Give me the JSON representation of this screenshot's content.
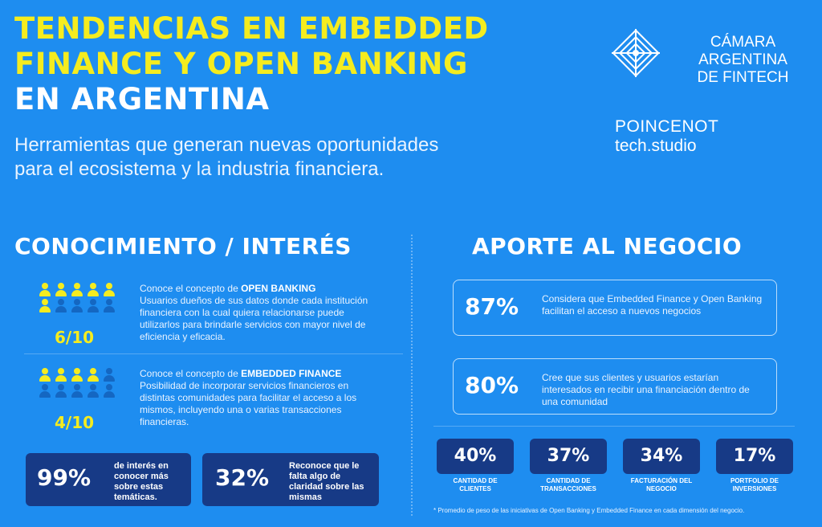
{
  "header": {
    "title_line1": "TENDENCIAS EN EMBEDDED",
    "title_line2": "FINANCE Y OPEN BANKING",
    "title_line3": "EN ARGENTINA",
    "subtitle_line1": "Herramientas que generan nuevas oportunidades",
    "subtitle_line2": "para el ecosistema y la industria financiera."
  },
  "logos": {
    "cafintech_line1": "CÁMARA ARGENTINA",
    "cafintech_line2": "DE FINTECH",
    "poincenot_line1": "POINCENOT",
    "poincenot_line2": "tech.studio"
  },
  "left": {
    "section_title": "CONOCIMIENTO / INTERÉS",
    "items": [
      {
        "ratio": "6/10",
        "filled": 6,
        "intro": "Conoce el concepto de ",
        "highlight": "OPEN BANKING",
        "text": "Usuarios dueños de sus datos donde cada institución financiera con la cual quiera relacionarse puede utilizarlos para brindarle servicios con mayor nivel de eficiencia y eficacia."
      },
      {
        "ratio": "4/10",
        "filled": 4,
        "intro": "Conoce el concepto de ",
        "highlight": "EMBEDDED FINANCE",
        "text": "Posibilidad de incorporar servicios financieros en distintas comunidades para facilitar el acceso a los mismos, incluyendo una o varias transacciones financieras."
      }
    ],
    "boxes": [
      {
        "value": "99%",
        "text": "de interés en conocer más sobre estas temáticas."
      },
      {
        "value": "32%",
        "text": "Reconoce que le falta algo de claridad sobre las mismas"
      }
    ]
  },
  "right": {
    "section_title": "APORTE AL NEGOCIO",
    "cards": [
      {
        "value": "87%",
        "text": "Considera que Embedded Finance y Open Banking facilitan el acceso a nuevos negocios"
      },
      {
        "value": "80%",
        "text": "Cree que sus clientes y usuarios estarían interesados en recibir una financiación dentro de una comunidad"
      }
    ],
    "stats": [
      {
        "value": "40%",
        "label": "CANTIDAD DE CLIENTES"
      },
      {
        "value": "37%",
        "label": "CANTIDAD DE TRANSACCIONES"
      },
      {
        "value": "34%",
        "label": "FACTURACIÓN DEL NEGOCIO"
      },
      {
        "value": "17%",
        "label": "PORTFOLIO DE INVERSIONES"
      }
    ],
    "footnote": "* Promedio de peso de las iniciativas de Open Banking y Embedded Finance  en cada dimensión del negocio."
  },
  "colors": {
    "background": "#1e8df0",
    "accent_yellow": "#f5ec1f",
    "dark_box": "#173a86"
  }
}
